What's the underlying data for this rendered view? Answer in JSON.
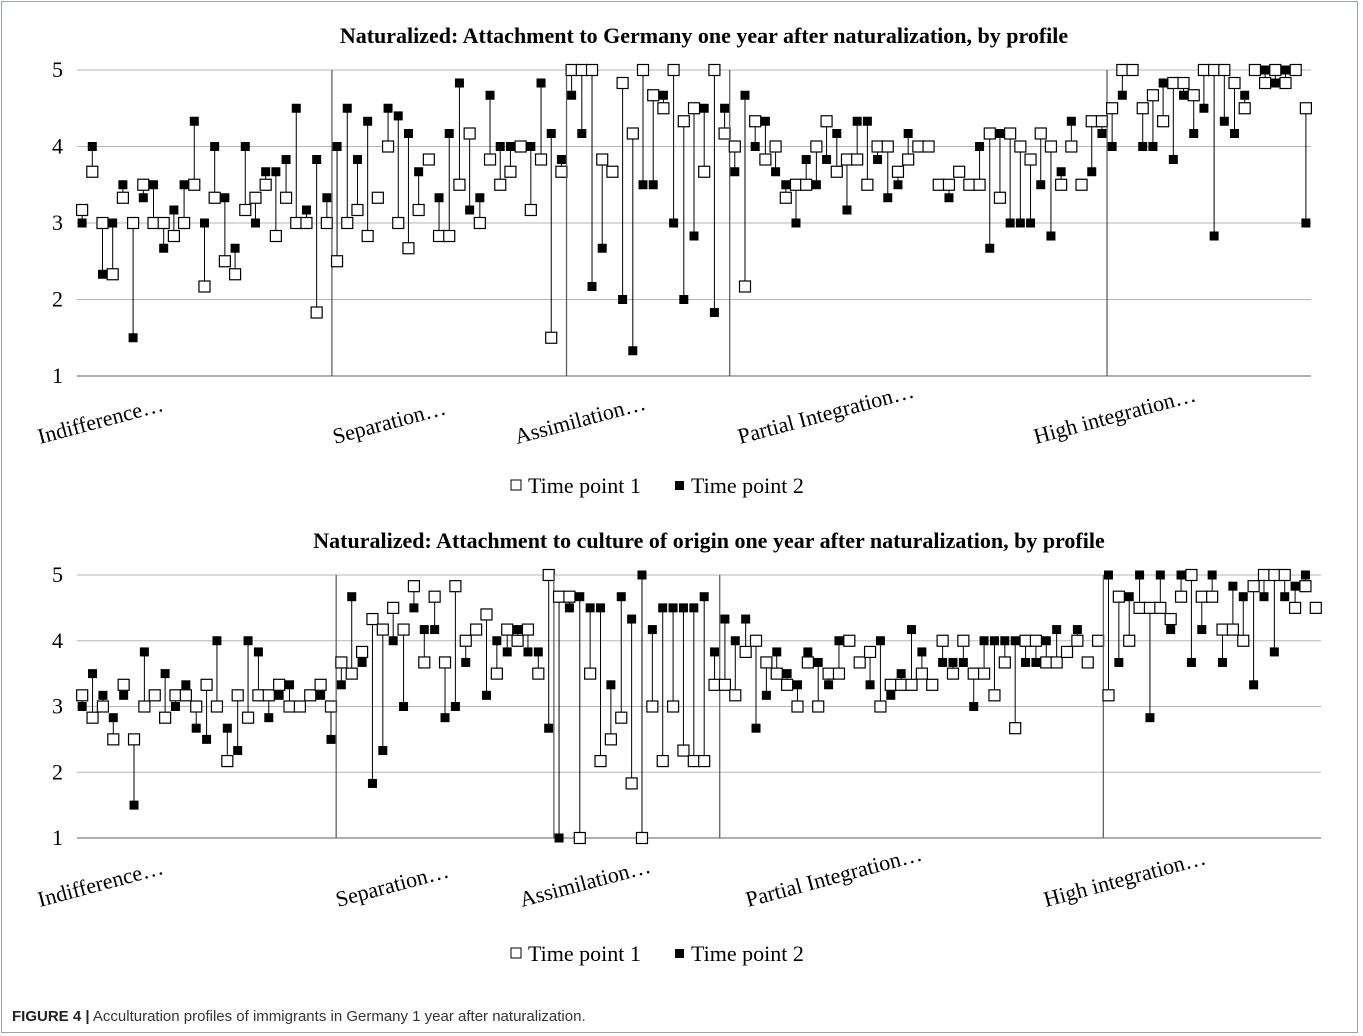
{
  "figure": {
    "label": "FIGURE 4 |",
    "caption": "Acculturation profiles of immigrants in Germany 1 year after naturalization."
  },
  "chart_data": [
    {
      "type": "scatter",
      "title": "Naturalized: Attachment to Germany one year after naturalization, by profile",
      "ylim": [
        1,
        5
      ],
      "yticks": [
        "1",
        "2",
        "3",
        "4",
        "5"
      ],
      "grid": true,
      "legend_position": "bottom",
      "series_names": [
        "Time point 1",
        "Time point 2"
      ],
      "profiles": [
        {
          "label": "Indifference…",
          "n": 25,
          "t1": [
            3.17,
            3.67,
            3,
            2.33,
            3.33,
            3,
            3.5,
            3,
            3,
            2.83,
            3,
            3.5,
            2.17,
            3.33,
            2.5,
            2.33,
            3.17,
            3.33,
            3.5,
            2.83,
            3.33,
            3,
            3,
            1.83,
            3
          ],
          "t2": [
            3,
            4,
            2.33,
            3,
            3.5,
            1.5,
            3.33,
            3.5,
            2.67,
            3.17,
            3.5,
            4.33,
            3,
            4,
            3.33,
            2.67,
            4,
            3,
            3.67,
            3.67,
            3.83,
            4.5,
            3.17,
            3.83,
            3.33
          ]
        },
        {
          "label": "Separation…",
          "n": 23,
          "t1": [
            2.5,
            3,
            3.17,
            2.83,
            3.33,
            4,
            3,
            2.67,
            3.17,
            3.83,
            2.83,
            2.83,
            3.5,
            4.17,
            3,
            3.83,
            3.5,
            3.67,
            4,
            3.17,
            3.83,
            1.5,
            3.67
          ],
          "t2": [
            4,
            4.5,
            3.83,
            4.33,
            3.33,
            4.5,
            4.4,
            4.17,
            3.67,
            3.83,
            3.33,
            4.17,
            4.83,
            3.17,
            3.33,
            4.67,
            4,
            4,
            4,
            4,
            4.83,
            4.17,
            3.83
          ]
        },
        {
          "label": "Assimilation…",
          "n": 16,
          "t1": [
            5,
            5,
            5,
            3.83,
            3.67,
            4.83,
            4.17,
            5,
            4.67,
            4.5,
            5,
            4.33,
            4.5,
            3.67,
            5,
            4.17
          ],
          "t2": [
            4.67,
            4.17,
            2.17,
            2.67,
            3.67,
            2,
            1.33,
            3.5,
            3.5,
            4.67,
            3,
            2,
            2.83,
            4.5,
            1.83,
            4.5
          ]
        },
        {
          "label": "Partial Integration…",
          "n": 37,
          "t1": [
            4,
            2.17,
            4.33,
            3.83,
            4,
            3.33,
            3.5,
            3.5,
            4,
            4.33,
            3.67,
            3.83,
            3.83,
            3.5,
            4,
            4,
            3.67,
            3.83,
            4,
            4,
            3.5,
            3.5,
            3.67,
            3.5,
            3.5,
            4.17,
            3.33,
            4.17,
            4,
            3.83,
            4.17,
            4,
            3.5,
            4,
            3.5,
            4.33,
            4.33
          ],
          "t2": [
            3.67,
            4.67,
            4,
            4.33,
            3.67,
            3.5,
            3,
            3.83,
            3.5,
            3.83,
            4.17,
            3.17,
            4.33,
            4.33,
            3.83,
            3.33,
            3.5,
            4.17,
            4,
            4,
            3.5,
            3.33,
            3.67,
            3.5,
            4,
            2.67,
            4.17,
            3,
            3,
            3,
            3.5,
            2.83,
            3.67,
            4.33,
            3.5,
            3.67,
            4.17
          ]
        },
        {
          "label": "High integration…",
          "n": 20,
          "t1": [
            4.5,
            5,
            5,
            4.5,
            4.67,
            4.33,
            4.83,
            4.83,
            4.67,
            5,
            5,
            5,
            4.83,
            4.5,
            5,
            4.83,
            5,
            4.83,
            5,
            4.5
          ],
          "t2": [
            4,
            4.67,
            5,
            4,
            4,
            4.83,
            3.83,
            4.67,
            4.17,
            4.5,
            2.83,
            4.33,
            4.17,
            4.67,
            5,
            5,
            4.83,
            5,
            5,
            3
          ]
        }
      ]
    },
    {
      "type": "scatter",
      "title": "Naturalized: Attachment to culture of origin one year after naturalization, by profile",
      "ylim": [
        1,
        5
      ],
      "yticks": [
        "1",
        "2",
        "3",
        "4",
        "5"
      ],
      "grid": true,
      "legend_position": "bottom",
      "series_names": [
        "Time point 1",
        "Time point 2"
      ],
      "profiles": [
        {
          "label": "Indifference…",
          "n": 25,
          "t1": [
            3.17,
            2.83,
            3,
            2.5,
            3.33,
            2.5,
            3,
            3.17,
            2.83,
            3.17,
            3.17,
            3,
            3.33,
            3,
            2.17,
            3.17,
            2.83,
            3.17,
            3.17,
            3.33,
            3,
            3,
            3.17,
            3.33,
            3
          ],
          "t2": [
            3,
            3.5,
            3.17,
            2.83,
            3.17,
            1.5,
            3.83,
            3.17,
            3.5,
            3,
            3.33,
            2.67,
            2.5,
            4,
            2.67,
            2.33,
            4,
            3.83,
            2.83,
            3.17,
            3.33,
            3,
            3.17,
            3.17,
            2.5
          ]
        },
        {
          "label": "Separation…",
          "n": 21,
          "t1": [
            3.67,
            3.5,
            3.83,
            4.33,
            4.17,
            4.5,
            4.17,
            4.83,
            3.67,
            4.67,
            3.67,
            4.83,
            4,
            4.17,
            4.4,
            3.5,
            4.17,
            4,
            4.17,
            3.5,
            5
          ],
          "t2": [
            3.33,
            4.67,
            3.67,
            1.83,
            2.33,
            4,
            3,
            4.5,
            4.17,
            4.17,
            2.83,
            3,
            3.67,
            4.17,
            3.17,
            4,
            3.83,
            4.17,
            3.83,
            3.83,
            2.67
          ]
        },
        {
          "label": "Assimilation…",
          "n": 16,
          "t1": [
            4.67,
            4.67,
            1,
            3.5,
            2.17,
            2.5,
            2.83,
            1.83,
            1,
            3,
            2.17,
            3,
            2.33,
            2.17,
            2.17,
            3.33
          ],
          "t2": [
            1,
            4.5,
            4.67,
            4.5,
            4.5,
            3.33,
            4.67,
            4.33,
            5,
            4.17,
            4.5,
            4.5,
            4.5,
            4.5,
            4.67,
            3.83
          ]
        },
        {
          "label": "Partial Integration…",
          "n": 37,
          "t1": [
            3.33,
            3.17,
            3.83,
            4,
            3.67,
            3.5,
            3.33,
            3,
            3.67,
            3,
            3.5,
            3.5,
            4,
            3.67,
            3.83,
            3,
            3.33,
            3.33,
            3.33,
            3.5,
            3.33,
            4,
            3.5,
            4,
            3.5,
            3.5,
            3.17,
            3.67,
            2.67,
            4,
            4,
            3.67,
            3.67,
            3.83,
            4,
            3.67,
            4
          ],
          "t2": [
            4.33,
            4,
            4.33,
            2.67,
            3.17,
            3.83,
            3.5,
            3.33,
            3.83,
            3.67,
            3.33,
            4,
            4,
            3.67,
            3.33,
            4,
            3.17,
            3.5,
            4.17,
            3.83,
            3.33,
            3.67,
            3.67,
            3.67,
            3,
            4,
            4,
            4,
            4,
            3.67,
            3.67,
            4,
            4.17,
            3.83,
            4.17,
            3.67,
            4
          ]
        },
        {
          "label": "High integration…",
          "n": 21,
          "t1": [
            3.17,
            4.67,
            4,
            4.5,
            4.5,
            4.5,
            4.33,
            4.67,
            5,
            4.67,
            4.67,
            4.17,
            4.17,
            4,
            4.83,
            5,
            5,
            5,
            4.5,
            4.83,
            4.5
          ],
          "t2": [
            5,
            3.67,
            4.67,
            5,
            2.83,
            5,
            4.17,
            5,
            3.67,
            4.17,
            5,
            3.67,
            4.83,
            4.67,
            3.33,
            4.67,
            3.83,
            4.67,
            4.83,
            5,
            4.5
          ]
        }
      ]
    }
  ]
}
